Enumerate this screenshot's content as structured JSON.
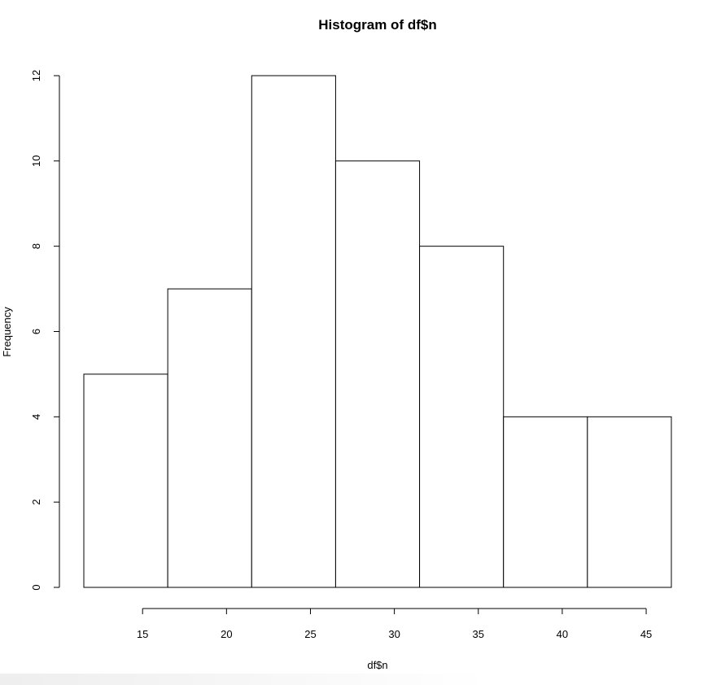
{
  "chart_data": {
    "type": "bar",
    "title": "Histogram of df$n",
    "xlabel": "df$n",
    "ylabel": "Frequency",
    "bins": [
      [
        11.5,
        16.5
      ],
      [
        16.5,
        21.5
      ],
      [
        21.5,
        26.5
      ],
      [
        26.5,
        31.5
      ],
      [
        31.5,
        36.5
      ],
      [
        36.5,
        41.5
      ],
      [
        41.5,
        46.5
      ]
    ],
    "values": [
      5,
      7,
      12,
      10,
      8,
      4,
      4
    ],
    "xlim": [
      11.5,
      46.5
    ],
    "ylim": [
      0,
      12
    ],
    "xticks": [
      15,
      20,
      25,
      30,
      35,
      40,
      45
    ],
    "yticks": [
      0,
      2,
      4,
      6,
      8,
      10,
      12
    ],
    "bar_fill": "#ffffff",
    "bar_stroke": "#000000",
    "grid": false
  }
}
